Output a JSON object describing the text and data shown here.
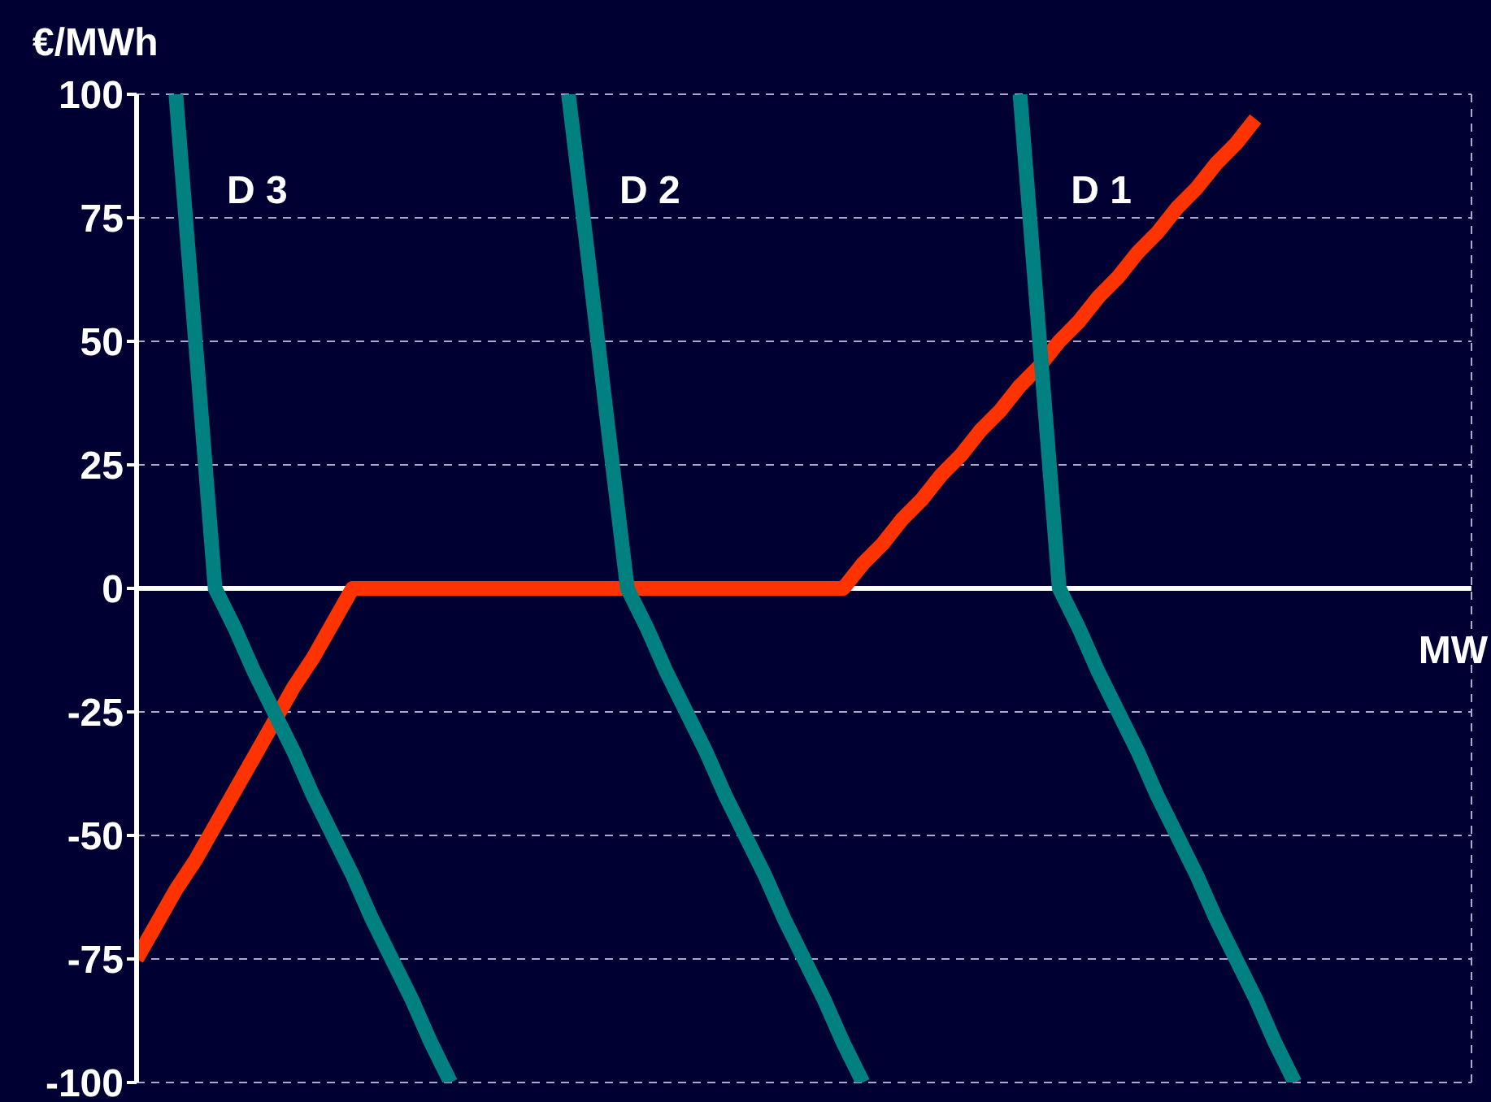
{
  "chart_data": {
    "type": "line",
    "xlabel": "MW",
    "ylabel": "€/MWh",
    "categories": [
      null,
      null,
      null,
      null,
      null,
      null,
      null,
      null,
      null,
      null,
      null,
      null,
      null,
      null,
      null,
      null,
      null,
      null,
      null,
      null,
      null,
      null,
      null,
      null,
      null,
      null,
      null,
      null,
      null,
      null,
      null,
      null,
      null,
      null,
      null,
      null,
      null,
      null,
      null,
      null,
      null,
      null,
      null,
      null,
      null,
      null,
      null,
      null,
      null,
      null,
      null,
      null,
      null,
      null,
      null,
      null,
      null,
      null,
      null,
      null,
      null,
      null,
      null,
      null,
      null,
      null,
      null,
      null,
      null
    ],
    "ylim": [
      -100,
      100
    ],
    "yticks": [
      -100,
      -75,
      -50,
      -25,
      0,
      25,
      50,
      75,
      100
    ],
    "tick_labels": "y",
    "grid": true,
    "line_style": "solid",
    "marker": "none",
    "ref_lines": [
      {
        "axis": "y",
        "value": 0,
        "color": "#ffffff"
      }
    ],
    "series": [
      {
        "color": "#ff3300",
        "values": [
          -75,
          -68,
          -61,
          -55,
          -48,
          -41,
          -34,
          -27,
          -20,
          -14,
          -7,
          0,
          0,
          0,
          0,
          0,
          0,
          0,
          0,
          0,
          0,
          0,
          0,
          0,
          0,
          0,
          0,
          0,
          0,
          0,
          0,
          0,
          0,
          0,
          0,
          0,
          0,
          5,
          9,
          14,
          18,
          23,
          27,
          32,
          36,
          41,
          45,
          50,
          54,
          59,
          63,
          68,
          72,
          77,
          81,
          86,
          90,
          95,
          null,
          null,
          null,
          null,
          null,
          null,
          null,
          null,
          null,
          null,
          null
        ]
      },
      {
        "name": "D 3",
        "color": "#008080",
        "values": [
          null,
          null,
          100,
          50,
          0,
          -8,
          -17,
          -25,
          -33,
          -42,
          -50,
          -58,
          -67,
          -75,
          -83,
          -92,
          -100,
          null,
          null,
          null,
          null,
          null,
          null,
          null,
          null,
          null,
          null,
          null,
          null,
          null,
          null,
          null,
          null,
          null,
          null,
          null,
          null,
          null,
          null,
          null,
          null,
          null,
          null,
          null,
          null,
          null,
          null,
          null,
          null,
          null,
          null,
          null,
          null,
          null,
          null,
          null,
          null,
          null,
          null,
          null,
          null,
          null,
          null,
          null,
          null,
          null,
          null,
          null,
          null
        ]
      },
      {
        "name": "D 2",
        "color": "#008080",
        "values": [
          null,
          null,
          null,
          null,
          null,
          null,
          null,
          null,
          null,
          null,
          null,
          null,
          null,
          null,
          null,
          null,
          null,
          null,
          null,
          null,
          null,
          null,
          100,
          67,
          33,
          0,
          -8,
          -17,
          -25,
          -33,
          -42,
          -50,
          -58,
          -67,
          -75,
          -83,
          -92,
          -100,
          null,
          null,
          null,
          null,
          null,
          null,
          null,
          null,
          null,
          null,
          null,
          null,
          null,
          null,
          null,
          null,
          null,
          null,
          null,
          null,
          null,
          null,
          null,
          null,
          null,
          null,
          null,
          null,
          null,
          null,
          null
        ]
      },
      {
        "name": "D 1",
        "color": "#008080",
        "values": [
          null,
          null,
          null,
          null,
          null,
          null,
          null,
          null,
          null,
          null,
          null,
          null,
          null,
          null,
          null,
          null,
          null,
          null,
          null,
          null,
          null,
          null,
          null,
          null,
          null,
          null,
          null,
          null,
          null,
          null,
          null,
          null,
          null,
          null,
          null,
          null,
          null,
          null,
          null,
          null,
          null,
          null,
          null,
          null,
          null,
          100,
          50,
          0,
          -8,
          -17,
          -25,
          -33,
          -42,
          -50,
          -58,
          -67,
          -75,
          -83,
          -92,
          -100,
          null,
          null,
          null,
          null,
          null,
          null,
          null,
          null,
          null
        ]
      }
    ]
  }
}
